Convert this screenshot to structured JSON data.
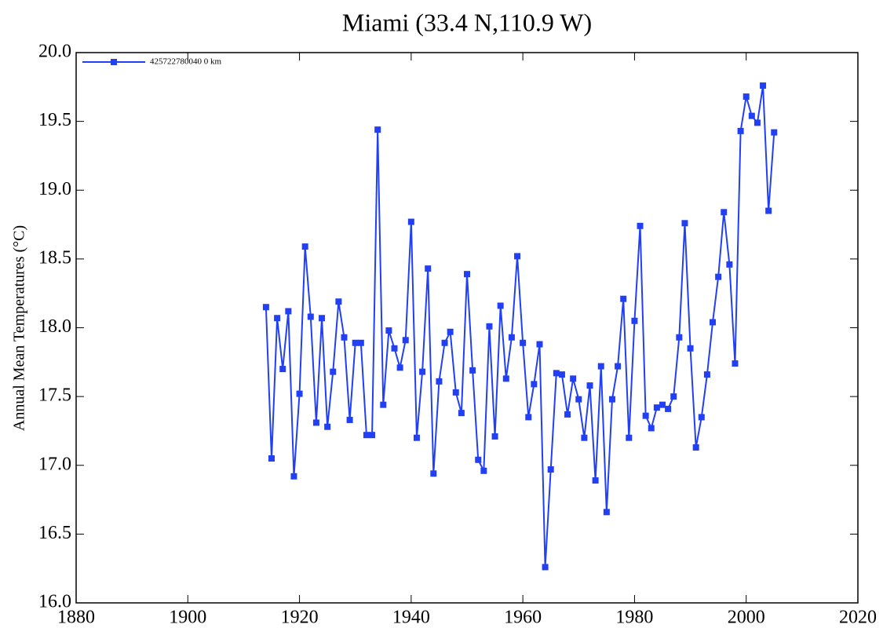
{
  "chart_data": {
    "type": "line",
    "title": "Miami (33.4 N,110.9 W)",
    "y_label": "Annual Mean Temperatures (°C)",
    "x": [
      1914,
      1915,
      1916,
      1917,
      1918,
      1919,
      1920,
      1921,
      1922,
      1923,
      1924,
      1925,
      1926,
      1927,
      1928,
      1929,
      1930,
      1931,
      1932,
      1933,
      1934,
      1935,
      1936,
      1937,
      1938,
      1939,
      1940,
      1941,
      1942,
      1943,
      1944,
      1945,
      1946,
      1947,
      1948,
      1949,
      1950,
      1951,
      1952,
      1953,
      1954,
      1955,
      1956,
      1957,
      1958,
      1959,
      1960,
      1961,
      1962,
      1963,
      1964,
      1965,
      1966,
      1967,
      1968,
      1969,
      1970,
      1971,
      1972,
      1973,
      1974,
      1975,
      1976,
      1977,
      1978,
      1979,
      1980,
      1981,
      1982,
      1983,
      1984,
      1985,
      1986,
      1987,
      1988,
      1989,
      1990,
      1991,
      1992,
      1993,
      1994,
      1995,
      1996,
      1997,
      1998,
      1999,
      2000,
      2001,
      2002,
      2003,
      2004,
      2005
    ],
    "series": [
      {
        "name": "425722780040 0 km",
        "color": "#2140f5",
        "values": [
          18.15,
          17.05,
          18.07,
          17.7,
          18.12,
          16.92,
          17.52,
          18.59,
          18.08,
          17.31,
          18.07,
          17.28,
          17.68,
          18.19,
          17.93,
          17.33,
          17.89,
          17.89,
          17.22,
          17.22,
          19.44,
          17.44,
          17.98,
          17.85,
          17.71,
          17.91,
          18.77,
          17.2,
          17.68,
          18.43,
          16.94,
          17.61,
          17.89,
          17.97,
          17.53,
          17.38,
          18.39,
          17.69,
          17.04,
          16.96,
          18.01,
          17.21,
          18.16,
          17.63,
          17.93,
          18.52,
          17.89,
          17.35,
          17.59,
          17.88,
          16.26,
          16.97,
          17.67,
          17.66,
          17.37,
          17.63,
          17.48,
          17.2,
          17.58,
          16.89,
          17.72,
          16.66,
          17.48,
          17.72,
          18.21,
          17.2,
          18.05,
          18.74,
          17.36,
          17.27,
          17.42,
          17.44,
          17.41,
          17.5,
          17.93,
          18.76,
          17.85,
          17.13,
          17.35,
          17.66,
          18.04,
          18.37,
          18.84,
          18.46,
          17.74,
          19.43,
          19.68,
          19.54,
          19.49,
          19.76,
          18.85,
          19.42
        ]
      }
    ],
    "xlim": [
      1880,
      2020
    ],
    "xticks": [
      1880,
      1900,
      1920,
      1940,
      1960,
      1980,
      2000,
      2020
    ],
    "ylim": [
      16,
      20
    ],
    "yticks": [
      {
        "value": 16,
        "label": "16.0"
      },
      {
        "value": 16.5,
        "label": "16.5"
      },
      {
        "value": 17,
        "label": "17.0"
      },
      {
        "value": 17.5,
        "label": "17.5"
      },
      {
        "value": 18,
        "label": "18.0"
      },
      {
        "value": 18.5,
        "label": "18.5"
      },
      {
        "value": 19,
        "label": "19.0"
      },
      {
        "value": 19.5,
        "label": "19.5"
      },
      {
        "value": 20,
        "label": "20.0"
      }
    ],
    "legend": "upper left",
    "grid": false
  }
}
